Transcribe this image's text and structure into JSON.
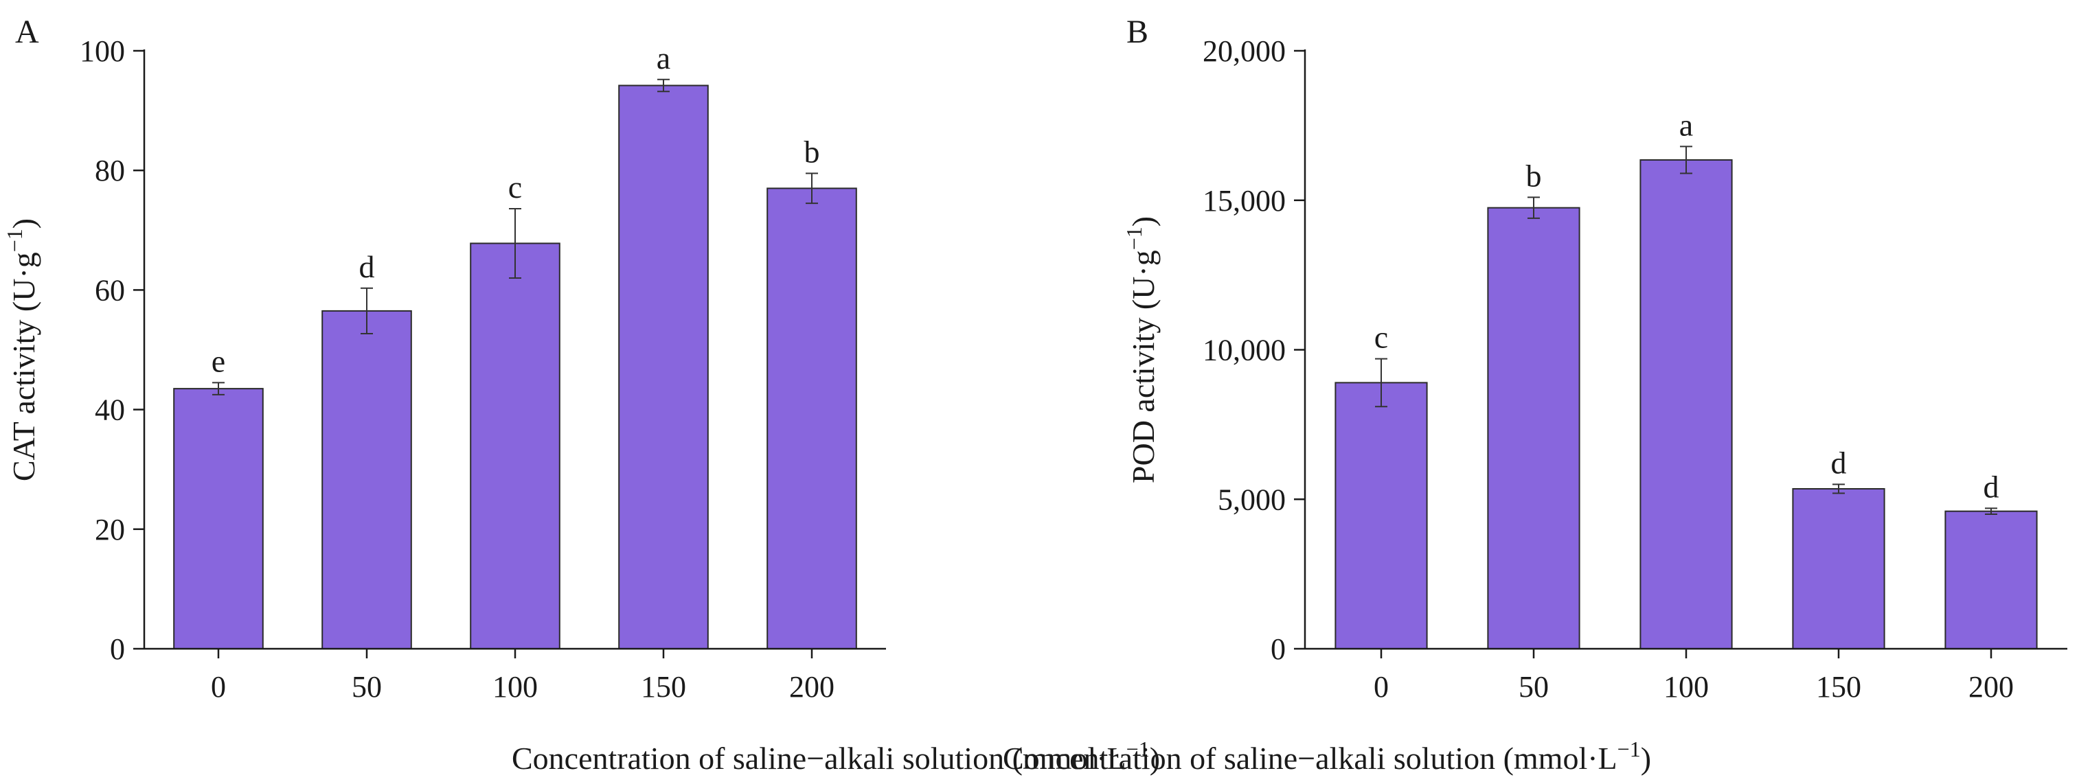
{
  "chart_data": [
    {
      "panel_label": "A",
      "type": "bar",
      "categories": [
        "0",
        "50",
        "100",
        "150",
        "200"
      ],
      "values": [
        43.5,
        56.5,
        67.8,
        94.2,
        77.0
      ],
      "errors": [
        1.0,
        3.8,
        5.8,
        1.0,
        2.5
      ],
      "significance": [
        "e",
        "d",
        "c",
        "a",
        "b"
      ],
      "xlabel": "Concentration of saline−alkali solution (mmol·L",
      "xlabel_sup": "−1",
      "xlabel_end": ")",
      "ylabel": "CAT activity (U·g",
      "ylabel_sup": "−1",
      "ylabel_end": ")",
      "ylim": [
        0,
        100
      ],
      "yticks": [
        0,
        20,
        40,
        60,
        80,
        100
      ],
      "ytick_labels": [
        "0",
        "20",
        "40",
        "60",
        "80",
        "100"
      ],
      "bar_color": "#8866dd"
    },
    {
      "panel_label": "B",
      "type": "bar",
      "categories": [
        "0",
        "50",
        "100",
        "150",
        "200"
      ],
      "values": [
        8900,
        14750,
        16350,
        5350,
        4600
      ],
      "errors": [
        800,
        350,
        450,
        150,
        100
      ],
      "significance": [
        "c",
        "b",
        "a",
        "d",
        "d"
      ],
      "xlabel": "Concentration of saline−alkali solution (mmol·L",
      "xlabel_sup": "−1",
      "xlabel_end": ")",
      "ylabel": "POD activity (U·g",
      "ylabel_sup": "−1",
      "ylabel_end": ")",
      "ylim": [
        0,
        20000
      ],
      "yticks": [
        0,
        5000,
        10000,
        15000,
        20000
      ],
      "ytick_labels": [
        "0",
        "5,000",
        "10,000",
        "15,000",
        "20,000"
      ],
      "bar_color": "#8866dd"
    }
  ]
}
